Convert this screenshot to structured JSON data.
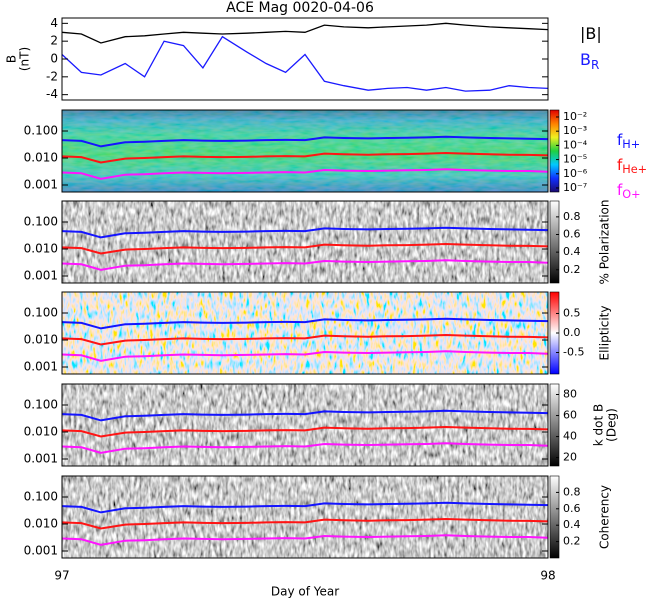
{
  "chart_data": [
    {
      "type": "line",
      "title": "ACE Mag 0020-04-06",
      "ylabel": "B",
      "ylabel_unit": "(nT)",
      "x": [
        97,
        97.04,
        97.08,
        97.13,
        97.17,
        97.21,
        97.25,
        97.29,
        97.33,
        97.38,
        97.42,
        97.46,
        97.5,
        97.54,
        97.58,
        97.63,
        97.67,
        97.71,
        97.75,
        97.79,
        97.83,
        97.88,
        97.92,
        97.96,
        98
      ],
      "xlim": [
        97,
        98
      ],
      "ylim": [
        -4.6,
        4.6
      ],
      "yticks": [
        -4,
        -2,
        0,
        2,
        4
      ],
      "series": [
        {
          "name": "|B|",
          "color": "#000000",
          "values": [
            3.0,
            2.8,
            1.8,
            2.5,
            2.6,
            2.8,
            3.0,
            2.9,
            2.8,
            2.9,
            3.0,
            3.1,
            3.0,
            3.8,
            3.6,
            3.5,
            3.6,
            3.7,
            3.8,
            4.0,
            3.8,
            3.6,
            3.5,
            3.4,
            3.3
          ]
        },
        {
          "name": "B",
          "subscript": "R",
          "color": "#1a1aff",
          "values": [
            0.5,
            -1.5,
            -1.8,
            -0.5,
            -2.0,
            2.0,
            1.5,
            -1.0,
            2.5,
            0.8,
            -0.5,
            -1.5,
            0.5,
            -2.5,
            -3.0,
            -3.5,
            -3.3,
            -3.2,
            -3.5,
            -3.2,
            -3.6,
            -3.5,
            -3.0,
            -3.2,
            -3.3
          ]
        }
      ]
    },
    {
      "type": "spectrogram",
      "log": true,
      "xlim": [
        97,
        98
      ],
      "ylim": [
        0.00055,
        0.6
      ],
      "yticks": [
        {
          "value": 0.1,
          "label": "0.100"
        },
        {
          "value": 0.01,
          "label": "0.010"
        },
        {
          "value": 0.001,
          "label": "0.001"
        }
      ],
      "x": [
        97,
        97.04,
        97.08,
        97.13,
        97.17,
        97.21,
        97.25,
        97.29,
        97.33,
        97.38,
        97.42,
        97.46,
        97.5,
        97.54,
        97.58,
        97.63,
        97.67,
        97.71,
        97.75,
        97.79,
        97.83,
        97.88,
        97.92,
        97.96,
        98
      ],
      "series": [
        {
          "name": "f",
          "subscript": "H+",
          "color": "#1414ff",
          "values": [
            0.046,
            0.043,
            0.027,
            0.038,
            0.04,
            0.043,
            0.046,
            0.044,
            0.043,
            0.044,
            0.046,
            0.047,
            0.046,
            0.058,
            0.055,
            0.053,
            0.055,
            0.056,
            0.058,
            0.061,
            0.058,
            0.055,
            0.053,
            0.052,
            0.05
          ]
        },
        {
          "name": "f",
          "subscript": "He+",
          "color": "#ff1414",
          "values": [
            0.0115,
            0.0108,
            0.0068,
            0.0095,
            0.01,
            0.0108,
            0.0115,
            0.011,
            0.0108,
            0.011,
            0.0115,
            0.0118,
            0.0115,
            0.0145,
            0.0138,
            0.0133,
            0.0138,
            0.014,
            0.0145,
            0.0153,
            0.0145,
            0.0138,
            0.0133,
            0.013,
            0.0125
          ]
        },
        {
          "name": "f",
          "subscript": "O+",
          "color": "#ff14ff",
          "values": [
            0.0029,
            0.0027,
            0.0017,
            0.0024,
            0.0025,
            0.0027,
            0.0029,
            0.0028,
            0.0027,
            0.0028,
            0.0029,
            0.003,
            0.0029,
            0.0036,
            0.0034,
            0.0033,
            0.0034,
            0.0035,
            0.0036,
            0.0038,
            0.0036,
            0.0034,
            0.0033,
            0.0033,
            0.0031
          ]
        }
      ],
      "colorbar": {
        "colormap": "rainbow",
        "log": true,
        "clim": [
          5.2e-08,
          0.031
        ],
        "ticks": [
          {
            "value": 0.01,
            "label": "10⁻²"
          },
          {
            "value": 0.001,
            "label": "10⁻³"
          },
          {
            "value": 0.0001,
            "label": "10⁻⁴"
          },
          {
            "value": 1e-05,
            "label": "10⁻⁵"
          },
          {
            "value": 1e-06,
            "label": "10⁻⁶"
          },
          {
            "value": 1e-07,
            "label": "10⁻⁷"
          }
        ]
      }
    },
    {
      "type": "spectrogram",
      "log": true,
      "xlim": [
        97,
        98
      ],
      "ylim": [
        0.00055,
        0.6
      ],
      "yticks": [
        {
          "value": 0.1,
          "label": "0.100"
        },
        {
          "value": 0.01,
          "label": "0.010"
        },
        {
          "value": 0.001,
          "label": "0.001"
        }
      ],
      "colorbar": {
        "colormap": "gray",
        "label": "% Polarization",
        "clim": [
          0.05,
          0.98
        ],
        "ticks": [
          0.2,
          0.4,
          0.6,
          0.8
        ]
      }
    },
    {
      "type": "spectrogram",
      "log": true,
      "xlim": [
        97,
        98
      ],
      "ylim": [
        0.00055,
        0.6
      ],
      "yticks": [
        {
          "value": 0.1,
          "label": "0.100"
        },
        {
          "value": 0.01,
          "label": "0.010"
        },
        {
          "value": 0.001,
          "label": "0.001"
        }
      ],
      "colorbar": {
        "colormap": "bwr",
        "label": "Ellipticity",
        "clim": [
          -1.05,
          1.05
        ],
        "ticks": [
          0.5,
          {
            "value": 0,
            "label": "0.0"
          },
          -0.5
        ]
      }
    },
    {
      "type": "spectrogram",
      "log": true,
      "xlim": [
        97,
        98
      ],
      "ylim": [
        0.00055,
        0.6
      ],
      "yticks": [
        {
          "value": 0.1,
          "label": "0.100"
        },
        {
          "value": 0.01,
          "label": "0.010"
        },
        {
          "value": 0.001,
          "label": "0.001"
        }
      ],
      "colorbar": {
        "colormap": "gray",
        "label": "k dot B",
        "label_unit": "(Deg)",
        "clim": [
          12,
          90
        ],
        "ticks": [
          20,
          40,
          60,
          80
        ]
      }
    },
    {
      "type": "spectrogram",
      "log": true,
      "xlim": [
        97,
        98
      ],
      "ylim": [
        0.00055,
        0.6
      ],
      "yticks": [
        {
          "value": 0.1,
          "label": "0.100"
        },
        {
          "value": 0.01,
          "label": "0.010"
        },
        {
          "value": 0.001,
          "label": "0.001"
        }
      ],
      "xticks": [
        97,
        98
      ],
      "xlabel": "Day of Year",
      "colorbar": {
        "colormap": "gray",
        "label": "Coherency",
        "clim": [
          0,
          1
        ],
        "ticks": [
          0.2,
          0.4,
          0.6,
          0.8
        ]
      }
    }
  ]
}
